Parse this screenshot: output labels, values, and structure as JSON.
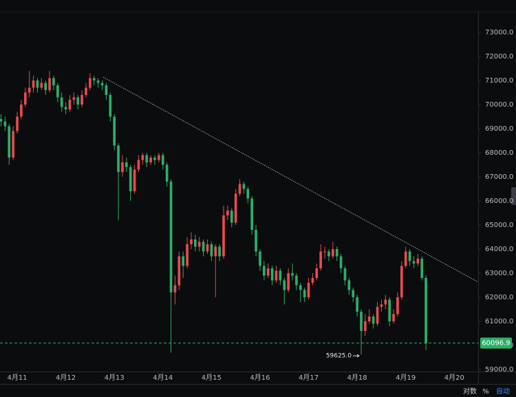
{
  "chart_data": {
    "type": "candlestick",
    "x": [
      -8,
      -6,
      -4,
      -2,
      0,
      2,
      4,
      6,
      8,
      10,
      12,
      14,
      16,
      18,
      20,
      22,
      24,
      26,
      28,
      30,
      32,
      34,
      36,
      38,
      40,
      42,
      44,
      46,
      48,
      50,
      52,
      54,
      56,
      58,
      60,
      62,
      64,
      66,
      68,
      70,
      72,
      74,
      76,
      78,
      80,
      82,
      84,
      86,
      88,
      90,
      92,
      94,
      96,
      98,
      100,
      102,
      104,
      106,
      108,
      110,
      112,
      114,
      116,
      118,
      120,
      122,
      124,
      126,
      128,
      130,
      132,
      134,
      136,
      138,
      140,
      142,
      144,
      146,
      148,
      150,
      152,
      154,
      156,
      158,
      160,
      162,
      164,
      166,
      168,
      170,
      172,
      174,
      176,
      178,
      180,
      182,
      184,
      186,
      188,
      190,
      192,
      194,
      196,
      198,
      200,
      202
    ],
    "candles": [
      [
        69400,
        69600,
        69100,
        69300
      ],
      [
        69300,
        69500,
        68900,
        69100
      ],
      [
        69100,
        69200,
        67500,
        67800
      ],
      [
        67800,
        69100,
        67700,
        68900
      ],
      [
        68900,
        69700,
        68800,
        69500
      ],
      [
        69500,
        70200,
        69400,
        70000
      ],
      [
        70000,
        70700,
        69900,
        70500
      ],
      [
        70500,
        71400,
        70300,
        70700
      ],
      [
        70700,
        71200,
        70500,
        71000
      ],
      [
        71000,
        71100,
        70500,
        70700
      ],
      [
        70700,
        71100,
        70600,
        70900
      ],
      [
        70900,
        71000,
        70400,
        70600
      ],
      [
        70600,
        71400,
        70500,
        71100
      ],
      [
        71100,
        71200,
        70600,
        70800
      ],
      [
        70800,
        70900,
        70100,
        70300
      ],
      [
        70300,
        70500,
        69700,
        69900
      ],
      [
        69900,
        70100,
        69600,
        69800
      ],
      [
        69800,
        70400,
        69700,
        70200
      ],
      [
        70200,
        70500,
        70000,
        70300
      ],
      [
        70300,
        70400,
        69800,
        70000
      ],
      [
        70000,
        70600,
        69900,
        70400
      ],
      [
        70400,
        70900,
        70300,
        70700
      ],
      [
        70700,
        71300,
        70600,
        71100
      ],
      [
        71100,
        71200,
        70800,
        71000
      ],
      [
        71000,
        71100,
        70700,
        70900
      ],
      [
        70900,
        71000,
        70600,
        70800
      ],
      [
        70800,
        70900,
        70200,
        70400
      ],
      [
        70400,
        70500,
        69300,
        69500
      ],
      [
        69500,
        69600,
        68100,
        68300
      ],
      [
        68300,
        68400,
        65200,
        67200
      ],
      [
        67200,
        67900,
        67000,
        67600
      ],
      [
        67600,
        67800,
        67200,
        67400
      ],
      [
        67400,
        67500,
        66000,
        66400
      ],
      [
        66400,
        67500,
        66300,
        67300
      ],
      [
        67300,
        67900,
        67200,
        67700
      ],
      [
        67700,
        68000,
        67500,
        67900
      ],
      [
        67900,
        68000,
        67400,
        67600
      ],
      [
        67600,
        67900,
        67500,
        67800
      ],
      [
        67800,
        67900,
        67500,
        67700
      ],
      [
        67700,
        68000,
        67600,
        67900
      ],
      [
        67900,
        68000,
        67300,
        67500
      ],
      [
        67500,
        67600,
        66600,
        66800
      ],
      [
        66800,
        66900,
        59700,
        62200
      ],
      [
        62200,
        62900,
        61700,
        62500
      ],
      [
        62500,
        63900,
        62300,
        63700
      ],
      [
        63700,
        63900,
        62800,
        63300
      ],
      [
        63300,
        64500,
        63200,
        64200
      ],
      [
        64200,
        64700,
        64000,
        64400
      ],
      [
        64400,
        64600,
        63900,
        64100
      ],
      [
        64100,
        64500,
        63900,
        64300
      ],
      [
        64300,
        64400,
        63700,
        63900
      ],
      [
        63900,
        64400,
        63800,
        64200
      ],
      [
        64200,
        64300,
        63500,
        63700
      ],
      [
        63700,
        64200,
        62000,
        64100
      ],
      [
        64100,
        64200,
        63500,
        63700
      ],
      [
        63700,
        65800,
        63600,
        65400
      ],
      [
        65400,
        65800,
        65200,
        65600
      ],
      [
        65600,
        65700,
        64900,
        65100
      ],
      [
        65100,
        66500,
        65000,
        66300
      ],
      [
        66300,
        66900,
        66200,
        66700
      ],
      [
        66700,
        66800,
        66300,
        66500
      ],
      [
        66500,
        66600,
        65900,
        66100
      ],
      [
        66100,
        66200,
        64600,
        64800
      ],
      [
        64800,
        65000,
        63700,
        63900
      ],
      [
        63900,
        64000,
        63100,
        63300
      ],
      [
        63300,
        63500,
        62700,
        62900
      ],
      [
        62900,
        63400,
        62800,
        63200
      ],
      [
        63200,
        63300,
        62500,
        62700
      ],
      [
        62700,
        63300,
        62600,
        63100
      ],
      [
        63100,
        63200,
        62500,
        62700
      ],
      [
        62700,
        62800,
        61700,
        62300
      ],
      [
        62300,
        63200,
        62200,
        63000
      ],
      [
        63000,
        63400,
        62700,
        62900
      ],
      [
        62900,
        63000,
        62300,
        62500
      ],
      [
        62500,
        62600,
        61800,
        62300
      ],
      [
        62300,
        62400,
        61800,
        62000
      ],
      [
        62000,
        62800,
        61900,
        62600
      ],
      [
        62600,
        63000,
        62500,
        62800
      ],
      [
        62800,
        63400,
        62700,
        63200
      ],
      [
        63200,
        64200,
        63100,
        63900
      ],
      [
        63900,
        64100,
        63600,
        63900
      ],
      [
        63900,
        64000,
        63500,
        63700
      ],
      [
        63700,
        64300,
        63600,
        64000
      ],
      [
        64000,
        64100,
        63500,
        63700
      ],
      [
        63700,
        63800,
        63000,
        63200
      ],
      [
        63200,
        63300,
        62500,
        62700
      ],
      [
        62700,
        62800,
        62100,
        62300
      ],
      [
        62300,
        62400,
        61800,
        62000
      ],
      [
        62000,
        62100,
        61200,
        61400
      ],
      [
        61400,
        61500,
        59625,
        60600
      ],
      [
        60600,
        61300,
        60400,
        61000
      ],
      [
        61000,
        61500,
        60900,
        61200
      ],
      [
        61200,
        61300,
        60700,
        60900
      ],
      [
        60900,
        61800,
        60800,
        61600
      ],
      [
        61600,
        61900,
        61400,
        61700
      ],
      [
        61700,
        62100,
        61500,
        61900
      ],
      [
        61900,
        62000,
        60800,
        61000
      ],
      [
        61000,
        61500,
        60900,
        61300
      ],
      [
        61300,
        62200,
        61200,
        62000
      ],
      [
        62000,
        63500,
        61900,
        63300
      ],
      [
        63300,
        64100,
        63200,
        63900
      ],
      [
        63900,
        64000,
        63300,
        63500
      ],
      [
        63500,
        63700,
        63200,
        63400
      ],
      [
        63400,
        63800,
        63300,
        63600
      ],
      [
        63600,
        63700,
        62700,
        62800
      ],
      [
        62800,
        62900,
        59800,
        60096.9
      ]
    ],
    "up_color": "#e84c4f",
    "down_color": "#2bb06a",
    "xlim": [
      -8.5,
      227.8
    ],
    "xticks": [
      {
        "value": 0,
        "label": "4月11"
      },
      {
        "value": 24,
        "label": "4月12"
      },
      {
        "value": 48,
        "label": "4月13"
      },
      {
        "value": 72,
        "label": "4月14"
      },
      {
        "value": 96,
        "label": "4月15"
      },
      {
        "value": 120,
        "label": "4月16"
      },
      {
        "value": 144,
        "label": "4月17"
      },
      {
        "value": 168,
        "label": "4月18"
      },
      {
        "value": 192,
        "label": "4月19"
      },
      {
        "value": 216,
        "label": "4月20"
      }
    ],
    "ylim": [
      58914.3,
      73857.1
    ],
    "yticks": [
      {
        "value": 59000,
        "label": "59000.0"
      },
      {
        "value": 60000,
        "label": "60000.0"
      },
      {
        "value": 61000,
        "label": "61000.0"
      },
      {
        "value": 62000,
        "label": "62000.0"
      },
      {
        "value": 63000,
        "label": "63000.0"
      },
      {
        "value": 64000,
        "label": "64000.0"
      },
      {
        "value": 65000,
        "label": "65000.0"
      },
      {
        "value": 66000,
        "label": "66000.0"
      },
      {
        "value": 67000,
        "label": "67000.0"
      },
      {
        "value": 68000,
        "label": "68000.0"
      },
      {
        "value": 69000,
        "label": "69000.0"
      },
      {
        "value": 70000,
        "label": "70000.0"
      },
      {
        "value": 71000,
        "label": "71000.0"
      },
      {
        "value": 72000,
        "label": "72000.0"
      },
      {
        "value": 73000,
        "label": "73000.0"
      }
    ],
    "grid": false,
    "last_price": 60096.9,
    "low_annotation": {
      "x": 170,
      "value": 59625,
      "label": "59625.0"
    },
    "trendline": {
      "x": [
        42.5,
        227.8
      ],
      "y": [
        71140,
        62630
      ],
      "color": "#cfd2d8"
    },
    "toolbar": {
      "log": "对数",
      "percent": "%",
      "auto": "自动"
    }
  }
}
